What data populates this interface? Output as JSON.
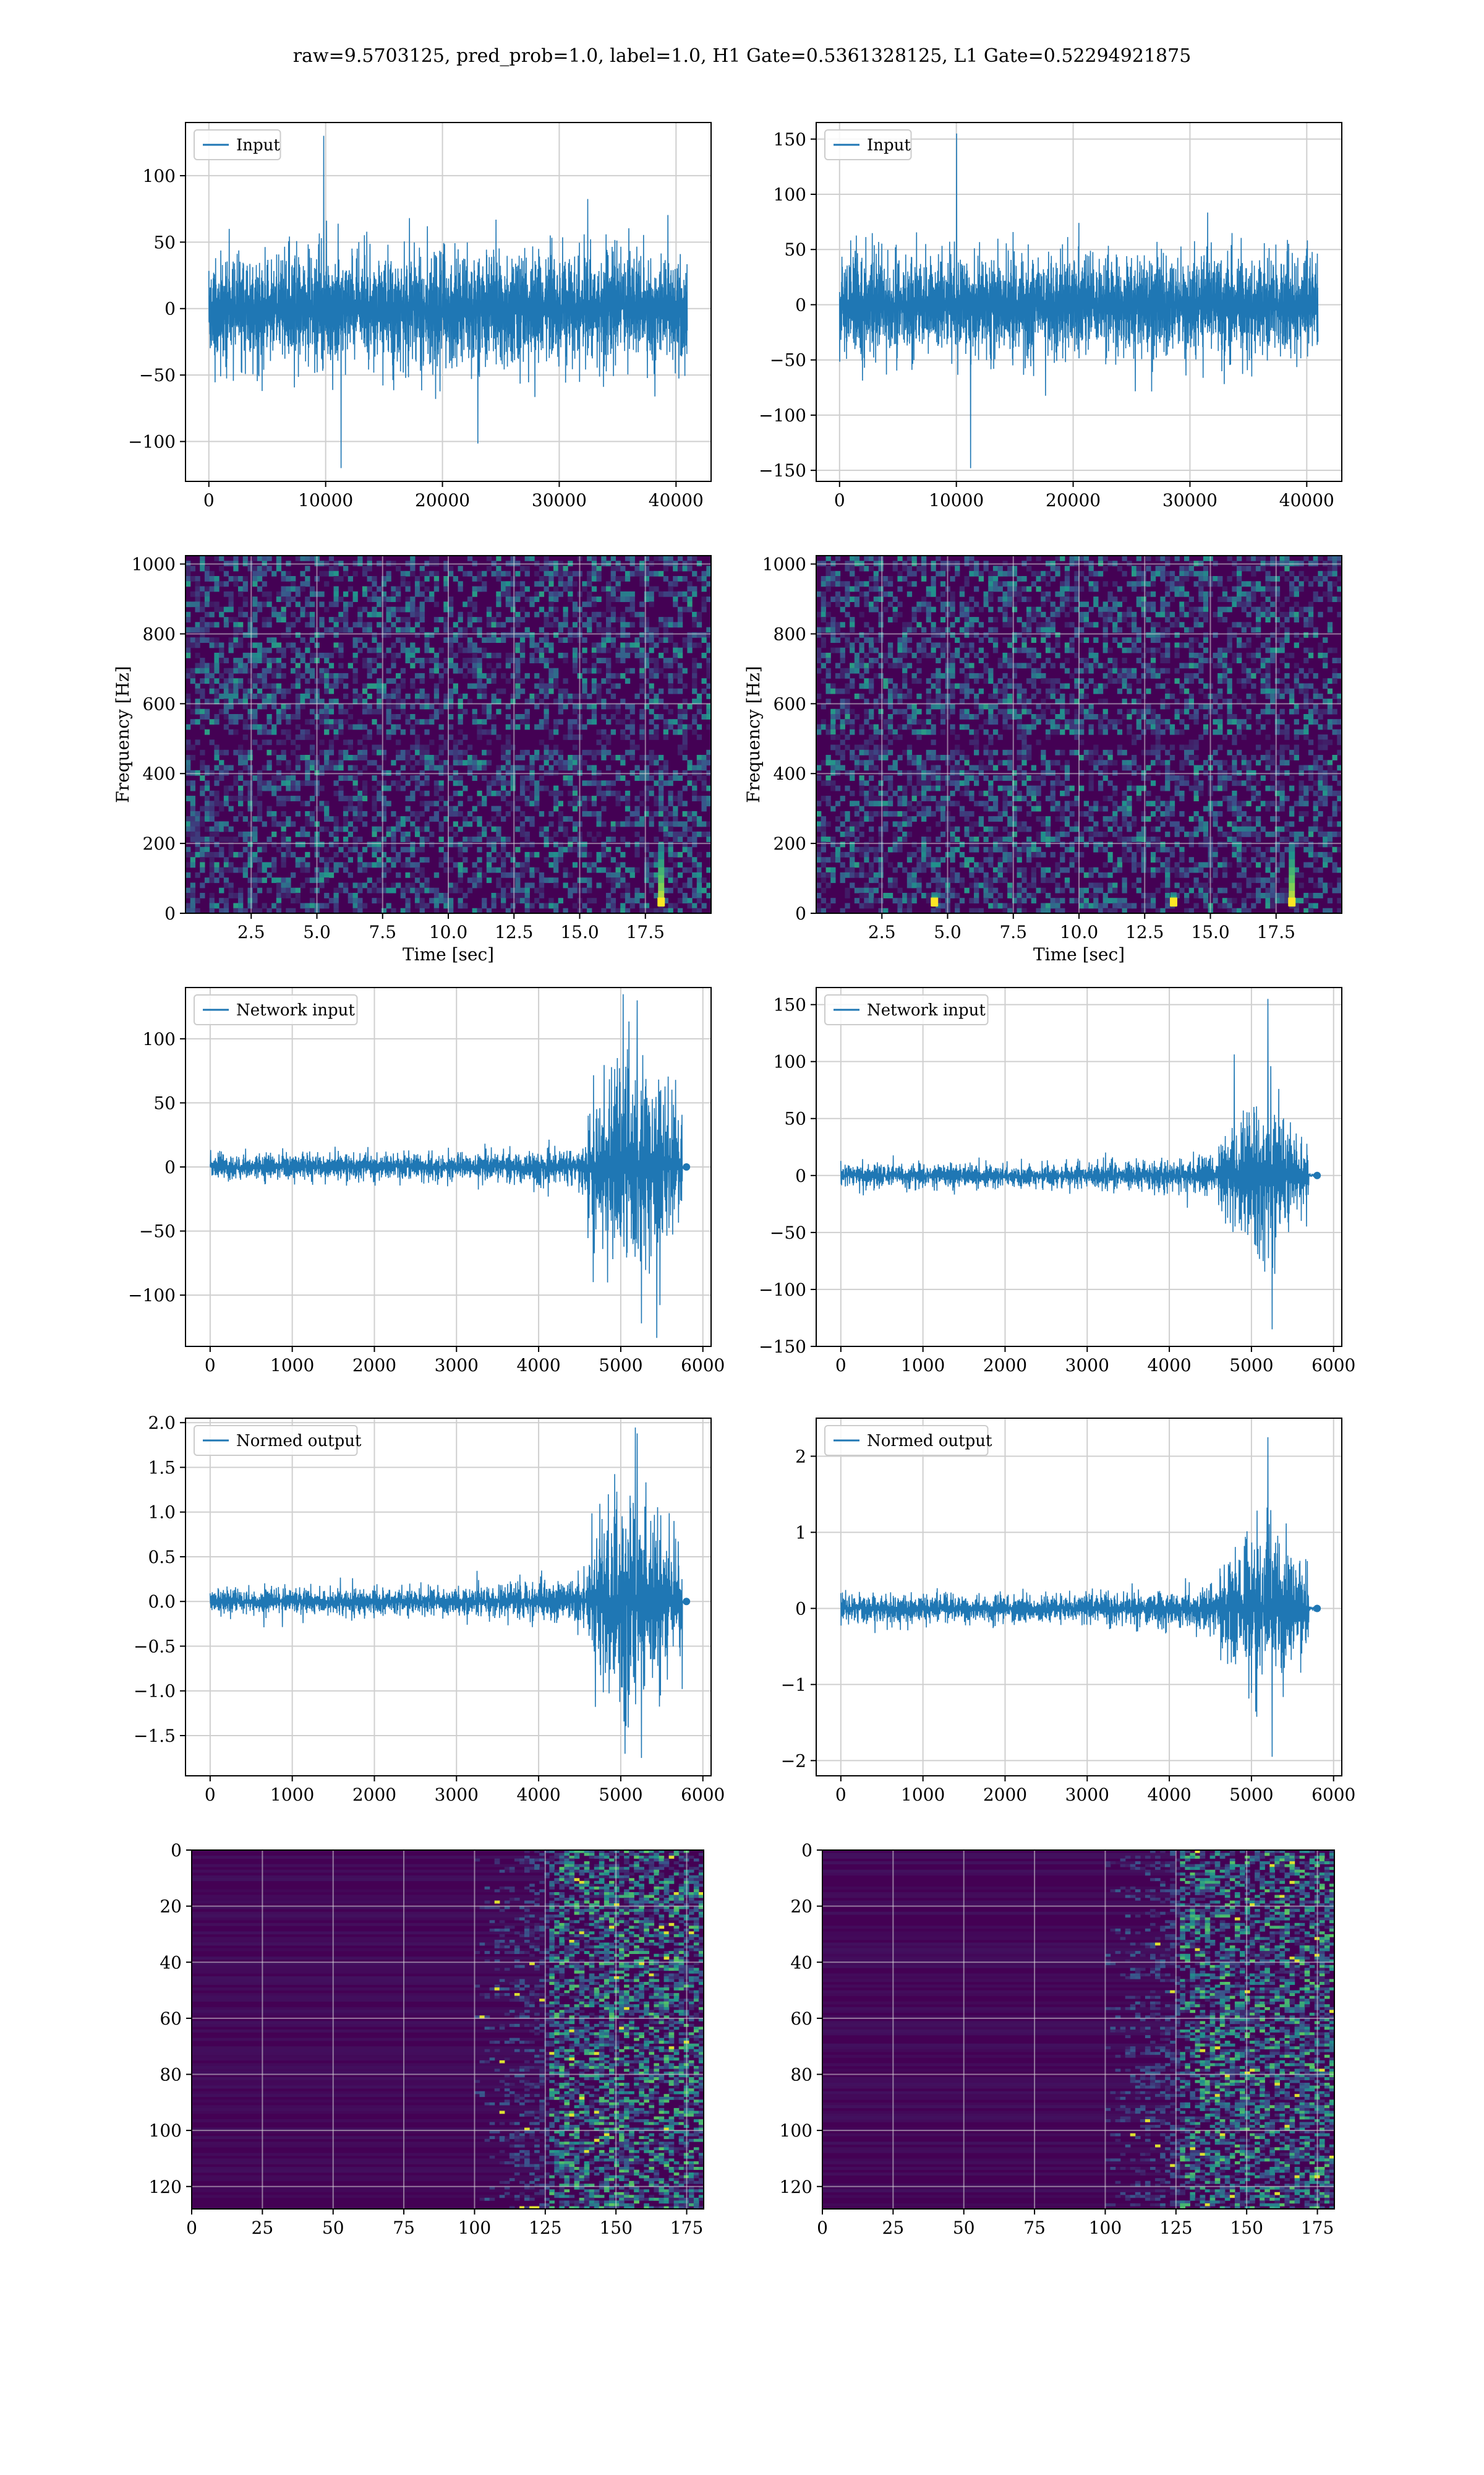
{
  "figure": {
    "title": "raw=9.5703125, pred_prob=1.0, label=1.0, H1 Gate=0.5361328125, L1 Gate=0.52294921875"
  },
  "colors": {
    "line": "#1f77b4",
    "grid": "#cfcfcf",
    "heatmap_low": "#440154",
    "heatmap_mid": "#31688e",
    "heatmap_high": "#35b779",
    "heatmap_peak": "#fde725"
  },
  "chart_data": [
    {
      "id": "input_h1",
      "type": "line",
      "series": [
        {
          "name": "Input"
        }
      ],
      "legend": "top-left",
      "grid": true,
      "xlim": [
        -2000,
        43000
      ],
      "ylim": [
        -130,
        140
      ],
      "xticks": [
        0,
        10000,
        20000,
        30000,
        40000
      ],
      "yticks": [
        -100,
        -50,
        0,
        50,
        100
      ],
      "xlabel": "",
      "ylabel": "",
      "x_range": [
        0,
        40960
      ],
      "amplitude": 40,
      "peak_min": -120,
      "peak_max": 130
    },
    {
      "id": "input_l1",
      "type": "line",
      "series": [
        {
          "name": "Input"
        }
      ],
      "legend": "top-left",
      "grid": true,
      "xlim": [
        -2000,
        43000
      ],
      "ylim": [
        -160,
        165
      ],
      "xticks": [
        0,
        10000,
        20000,
        30000,
        40000
      ],
      "yticks": [
        -150,
        -100,
        -50,
        0,
        50,
        100,
        150
      ],
      "xlabel": "",
      "ylabel": "",
      "x_range": [
        0,
        40960
      ],
      "amplitude": 42,
      "peak_min": -148,
      "peak_max": 155
    },
    {
      "id": "spec_h1",
      "type": "heatmap",
      "grid": true,
      "xlim": [
        0,
        20
      ],
      "ylim": [
        0,
        1024
      ],
      "xticks": [
        2.5,
        5.0,
        7.5,
        10.0,
        12.5,
        15.0,
        17.5
      ],
      "yticks": [
        0,
        200,
        400,
        600,
        800,
        1000
      ],
      "xlabel": "Time [sec]",
      "ylabel": "Frequency [Hz]",
      "hotspots": [
        {
          "t": 18.1,
          "f_low": 20,
          "f_high": 200
        }
      ]
    },
    {
      "id": "spec_l1",
      "type": "heatmap",
      "grid": true,
      "xlim": [
        0,
        20
      ],
      "ylim": [
        0,
        1024
      ],
      "xticks": [
        2.5,
        5.0,
        7.5,
        10.0,
        12.5,
        15.0,
        17.5
      ],
      "yticks": [
        0,
        200,
        400,
        600,
        800,
        1000
      ],
      "xlabel": "Time [sec]",
      "ylabel": "Frequency [Hz]",
      "hotspots": [
        {
          "t": 4.5,
          "f_low": 20,
          "f_high": 60
        },
        {
          "t": 13.6,
          "f_low": 20,
          "f_high": 60
        },
        {
          "t": 18.1,
          "f_low": 20,
          "f_high": 200
        }
      ]
    },
    {
      "id": "network_input_h1",
      "type": "line",
      "series": [
        {
          "name": "Network input"
        }
      ],
      "legend": "top-left",
      "grid": true,
      "xlim": [
        -300,
        6100
      ],
      "ylim": [
        -140,
        140
      ],
      "xticks": [
        0,
        1000,
        2000,
        3000,
        4000,
        5000,
        6000
      ],
      "yticks": [
        -100,
        -50,
        0,
        50,
        100
      ],
      "xlabel": "",
      "ylabel": "",
      "x_range": [
        0,
        5800
      ],
      "burst_start": 4600,
      "burst_end": 5750,
      "base_amp": 10,
      "burst_amp": 70,
      "peak_min": -122,
      "peak_max": 130
    },
    {
      "id": "network_input_l1",
      "type": "line",
      "series": [
        {
          "name": "Network input"
        }
      ],
      "legend": "top-left",
      "grid": true,
      "xlim": [
        -300,
        6100
      ],
      "ylim": [
        -150,
        165
      ],
      "xticks": [
        0,
        1000,
        2000,
        3000,
        4000,
        5000,
        6000
      ],
      "yticks": [
        -150,
        -100,
        -50,
        0,
        50,
        100,
        150
      ],
      "xlabel": "",
      "ylabel": "",
      "x_range": [
        0,
        5800
      ],
      "burst_start": 4600,
      "burst_end": 5700,
      "base_amp": 10,
      "burst_amp": 55,
      "peak_min": -135,
      "peak_max": 155
    },
    {
      "id": "normed_output_h1",
      "type": "line",
      "series": [
        {
          "name": "Normed output"
        }
      ],
      "legend": "top-left",
      "grid": true,
      "xlim": [
        -300,
        6100
      ],
      "ylim": [
        -1.95,
        2.05
      ],
      "xticks": [
        0,
        1000,
        2000,
        3000,
        4000,
        5000,
        6000
      ],
      "yticks": [
        -1.5,
        -1.0,
        -0.5,
        0.0,
        0.5,
        1.0,
        1.5,
        2.0
      ],
      "xlabel": "",
      "ylabel": "",
      "x_range": [
        0,
        5800
      ],
      "burst_start": 4600,
      "burst_end": 5750,
      "base_amp": 0.15,
      "burst_amp": 1.0,
      "peak_min": -1.75,
      "peak_max": 1.88
    },
    {
      "id": "normed_output_l1",
      "type": "line",
      "series": [
        {
          "name": "Normed output"
        }
      ],
      "legend": "top-left",
      "grid": true,
      "xlim": [
        -300,
        6100
      ],
      "ylim": [
        -2.2,
        2.5
      ],
      "xticks": [
        0,
        1000,
        2000,
        3000,
        4000,
        5000,
        6000
      ],
      "yticks": [
        -2,
        -1,
        0,
        1,
        2
      ],
      "xlabel": "",
      "ylabel": "",
      "x_range": [
        0,
        5800
      ],
      "burst_start": 4600,
      "burst_end": 5700,
      "base_amp": 0.18,
      "burst_amp": 0.85,
      "peak_min": -1.95,
      "peak_max": 2.25
    },
    {
      "id": "features_h1",
      "type": "heatmap",
      "grid": true,
      "xlim": [
        0,
        181
      ],
      "ylim": [
        128,
        0
      ],
      "xticks": [
        0,
        25,
        50,
        75,
        100,
        125,
        150,
        175
      ],
      "yticks": [
        0,
        20,
        40,
        60,
        80,
        100,
        120
      ],
      "xlabel": "",
      "ylabel": "",
      "active_from": 125
    },
    {
      "id": "features_l1",
      "type": "heatmap",
      "grid": true,
      "xlim": [
        0,
        181
      ],
      "ylim": [
        128,
        0
      ],
      "xticks": [
        0,
        25,
        50,
        75,
        100,
        125,
        150,
        175
      ],
      "yticks": [
        0,
        20,
        40,
        60,
        80,
        100,
        120
      ],
      "xlabel": "",
      "ylabel": "",
      "active_from": 125
    }
  ]
}
